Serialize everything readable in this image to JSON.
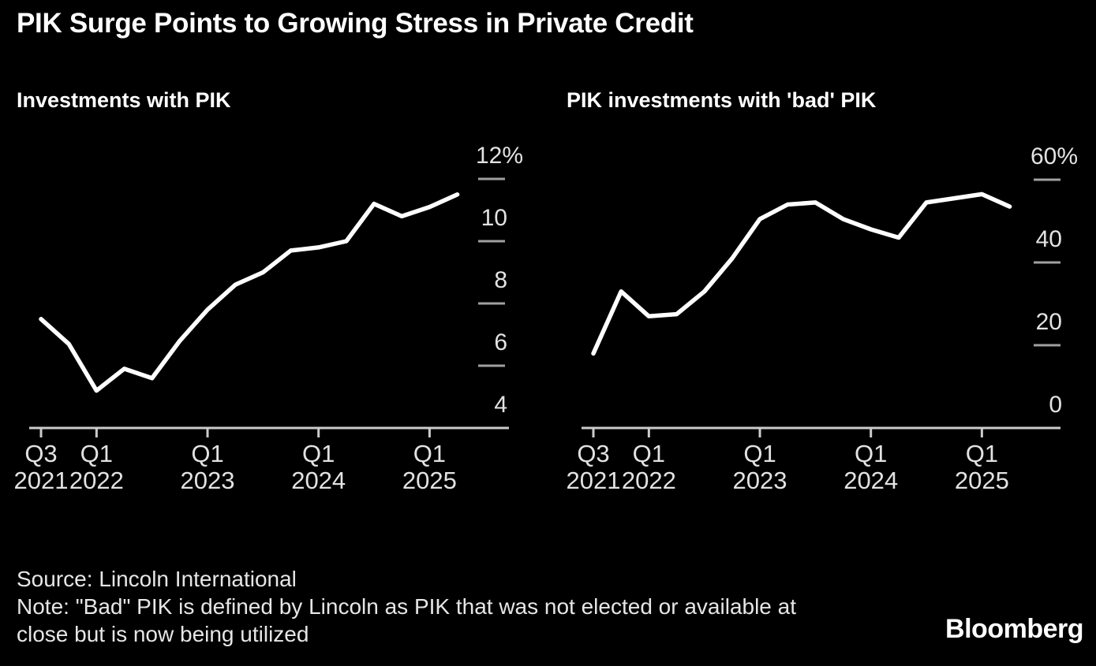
{
  "title": "PIK Surge Points to Growing Stress in Private Credit",
  "footer": {
    "source_line": "Source: Lincoln International",
    "note_line": "Note: \"Bad\" PIK is defined by Lincoln as PIK that was not elected or available at close but is now being utilized"
  },
  "logo_text": "Bloomberg",
  "colors": {
    "background": "#000000",
    "series_line": "#ffffff",
    "axis_line": "#cccccc",
    "tick_mark": "#a0a0a0",
    "axis_label": "#e2e2e2",
    "title_text": "#ffffff"
  },
  "chart_data": [
    {
      "type": "line",
      "title": "Investments with PIK",
      "legend": "none",
      "grid": "off",
      "x": [
        "Q3 2021",
        "Q4 2021",
        "Q1 2022",
        "Q2 2022",
        "Q3 2022",
        "Q4 2022",
        "Q1 2023",
        "Q2 2023",
        "Q3 2023",
        "Q4 2023",
        "Q1 2024",
        "Q2 2024",
        "Q3 2024",
        "Q4 2024",
        "Q1 2025",
        "Q2 2025"
      ],
      "values": [
        7.5,
        6.7,
        5.2,
        5.9,
        5.6,
        6.8,
        7.8,
        8.6,
        9.0,
        9.7,
        9.8,
        10.0,
        11.2,
        10.8,
        11.1,
        11.5
      ],
      "unit": "%",
      "ylim": [
        4,
        12
      ],
      "y_axis_side": "right",
      "y_ticks": [
        {
          "value": 12,
          "label": "12%"
        },
        {
          "value": 10,
          "label": "10"
        },
        {
          "value": 8,
          "label": "8"
        },
        {
          "value": 6,
          "label": "6"
        },
        {
          "value": 4,
          "label": "4"
        }
      ],
      "x_ticks": [
        {
          "index": 0,
          "line1": "Q3",
          "line2": "2021"
        },
        {
          "index": 2,
          "line1": "Q1",
          "line2": "2022"
        },
        {
          "index": 6,
          "line1": "Q1",
          "line2": "2023"
        },
        {
          "index": 10,
          "line1": "Q1",
          "line2": "2024"
        },
        {
          "index": 14,
          "line1": "Q1",
          "line2": "2025"
        }
      ]
    },
    {
      "type": "line",
      "title": "PIK investments with 'bad' PIK",
      "legend": "none",
      "grid": "off",
      "x": [
        "Q3 2021",
        "Q4 2021",
        "Q1 2022",
        "Q2 2022",
        "Q3 2022",
        "Q4 2022",
        "Q1 2023",
        "Q2 2023",
        "Q3 2023",
        "Q4 2023",
        "Q1 2024",
        "Q2 2024",
        "Q3 2024",
        "Q4 2024",
        "Q1 2025",
        "Q2 2025"
      ],
      "values": [
        18,
        33,
        27,
        27.5,
        33,
        41,
        50.5,
        54,
        54.5,
        50.5,
        48,
        46,
        54.5,
        55.5,
        56.5,
        53.5
      ],
      "unit": "%",
      "ylim": [
        0,
        60
      ],
      "y_axis_side": "right",
      "y_ticks": [
        {
          "value": 60,
          "label": "60%"
        },
        {
          "value": 40,
          "label": "40"
        },
        {
          "value": 20,
          "label": "20"
        },
        {
          "value": 0,
          "label": "0"
        }
      ],
      "x_ticks": [
        {
          "index": 0,
          "line1": "Q3",
          "line2": "2021"
        },
        {
          "index": 2,
          "line1": "Q1",
          "line2": "2022"
        },
        {
          "index": 6,
          "line1": "Q1",
          "line2": "2023"
        },
        {
          "index": 10,
          "line1": "Q1",
          "line2": "2024"
        },
        {
          "index": 14,
          "line1": "Q1",
          "line2": "2025"
        }
      ]
    }
  ]
}
